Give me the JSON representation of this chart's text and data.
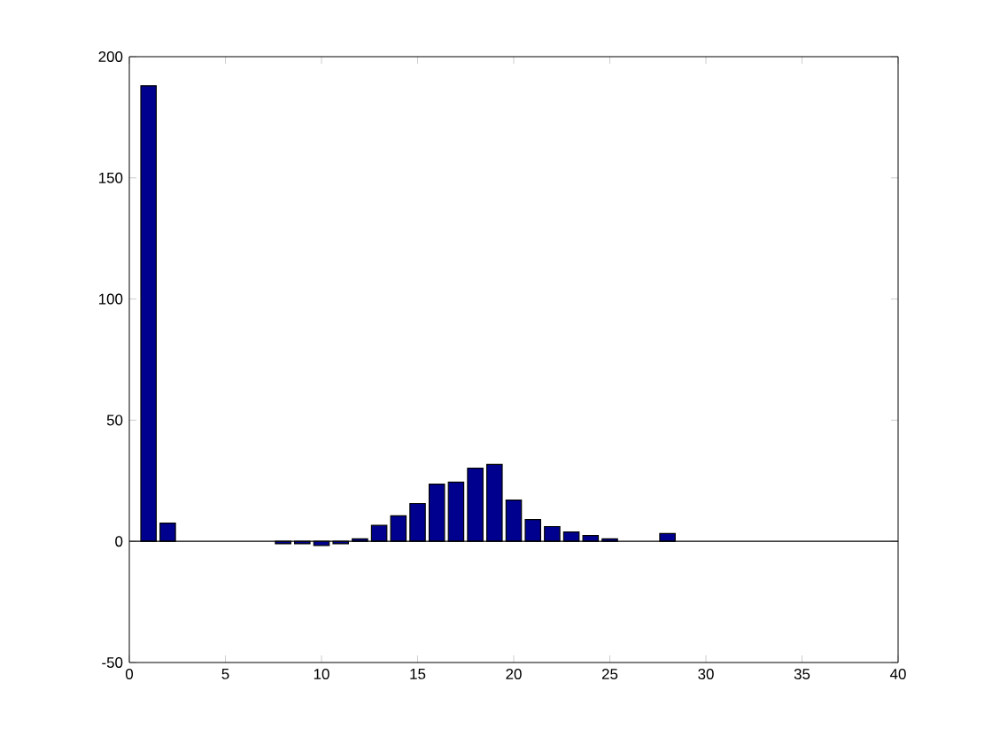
{
  "chart_data": {
    "type": "bar",
    "x": [
      1,
      2,
      8,
      9,
      10,
      11,
      12,
      13,
      14,
      15,
      16,
      17,
      18,
      19,
      20,
      21,
      22,
      23,
      24,
      25,
      28
    ],
    "values": [
      188,
      7.5,
      -1,
      -1,
      -1.7,
      -1,
      1,
      6.6,
      10.5,
      15.6,
      23.6,
      24.4,
      30.2,
      31.7,
      17,
      9,
      6.1,
      3.9,
      2.4,
      1,
      3.2
    ],
    "color": "#00008f",
    "xlim": [
      0,
      40
    ],
    "xticks": [
      0,
      5,
      10,
      15,
      20,
      25,
      30,
      35,
      40
    ],
    "ylim": [
      -50,
      200
    ],
    "yticks": [
      -50,
      0,
      50,
      100,
      150,
      200
    ],
    "ref_lines": [
      {
        "axis": "y",
        "value": 0,
        "color": "#000000"
      }
    ]
  }
}
